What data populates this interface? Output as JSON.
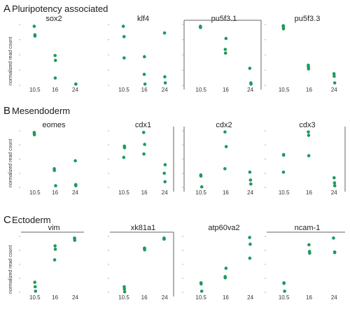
{
  "figure": {
    "sections": [
      {
        "letter": "A",
        "title": "Pluripotency associated"
      },
      {
        "letter": "B",
        "title": "Mesendoderm"
      },
      {
        "letter": "C",
        "title": "Ectoderm"
      }
    ],
    "ylabel": "normalized read count",
    "point_color": "#1e9a5c"
  },
  "chart_data": [
    {
      "type": "scatter",
      "title": "sox2",
      "categories": [
        "10.5",
        "16",
        "24"
      ],
      "ylim": [
        0,
        1
      ],
      "series": [
        {
          "points": [
            [
              0,
              0.97
            ],
            [
              0,
              0.83
            ],
            [
              0,
              0.81
            ],
            [
              1,
              0.49
            ],
            [
              1,
              0.41
            ],
            [
              1,
              0.12
            ],
            [
              2,
              0.02
            ],
            [
              2,
              0.02
            ]
          ]
        }
      ]
    },
    {
      "type": "scatter",
      "title": "klf4",
      "categories": [
        "10.5",
        "16",
        "24"
      ],
      "ylim": [
        0,
        1
      ],
      "series": [
        {
          "points": [
            [
              0,
              0.97
            ],
            [
              0,
              0.8
            ],
            [
              0,
              0.45
            ],
            [
              1,
              0.47
            ],
            [
              1,
              0.18
            ],
            [
              1,
              0.02
            ],
            [
              2,
              0.86
            ],
            [
              2,
              0.14
            ],
            [
              2,
              0.04
            ]
          ]
        }
      ]
    },
    {
      "type": "scatter",
      "title": "pu5f3.1",
      "categories": [
        "10.5",
        "16",
        "24"
      ],
      "ylim": [
        0,
        1
      ],
      "series": [
        {
          "points": [
            [
              0,
              0.97
            ],
            [
              0,
              0.96
            ],
            [
              0,
              0.95
            ],
            [
              1,
              0.77
            ],
            [
              1,
              0.59
            ],
            [
              1,
              0.53
            ],
            [
              2,
              0.28
            ],
            [
              2,
              0.04
            ],
            [
              2,
              0.02
            ]
          ]
        }
      ]
    },
    {
      "type": "scatter",
      "title": "pu5f3.3",
      "categories": [
        "10.5",
        "16",
        "24"
      ],
      "ylim": [
        0,
        1
      ],
      "series": [
        {
          "points": [
            [
              0,
              0.98
            ],
            [
              0,
              0.96
            ],
            [
              0,
              0.93
            ],
            [
              1,
              0.33
            ],
            [
              1,
              0.3
            ],
            [
              1,
              0.27
            ],
            [
              2,
              0.19
            ],
            [
              2,
              0.15
            ],
            [
              2,
              0.04
            ]
          ]
        }
      ]
    },
    {
      "type": "scatter",
      "title": "eomes",
      "categories": [
        "10.5",
        "16",
        "24"
      ],
      "ylim": [
        0,
        1
      ],
      "series": [
        {
          "points": [
            [
              0,
              0.97
            ],
            [
              0,
              0.95
            ],
            [
              0,
              0.93
            ],
            [
              1,
              0.33
            ],
            [
              1,
              0.3
            ],
            [
              1,
              0.03
            ],
            [
              2,
              0.47
            ],
            [
              2,
              0.05
            ],
            [
              2,
              0.03
            ]
          ]
        }
      ]
    },
    {
      "type": "scatter",
      "title": "cdx1",
      "categories": [
        "10.5",
        "16",
        "24"
      ],
      "ylim": [
        0,
        1
      ],
      "series": [
        {
          "points": [
            [
              0,
              0.73
            ],
            [
              0,
              0.7
            ],
            [
              0,
              0.53
            ],
            [
              1,
              0.97
            ],
            [
              1,
              0.76
            ],
            [
              1,
              0.59
            ],
            [
              2,
              0.4
            ],
            [
              2,
              0.25
            ],
            [
              2,
              0.1
            ]
          ]
        }
      ]
    },
    {
      "type": "scatter",
      "title": "cdx2",
      "categories": [
        "10.5",
        "16",
        "24"
      ],
      "ylim": [
        0,
        1
      ],
      "series": [
        {
          "points": [
            [
              0,
              0.22
            ],
            [
              0,
              0.2
            ],
            [
              0,
              0.01
            ],
            [
              1,
              0.98
            ],
            [
              1,
              0.72
            ],
            [
              1,
              0.33
            ],
            [
              2,
              0.27
            ],
            [
              2,
              0.13
            ],
            [
              2,
              0.06
            ]
          ]
        }
      ]
    },
    {
      "type": "scatter",
      "title": "cdx3",
      "categories": [
        "10.5",
        "16",
        "24"
      ],
      "ylim": [
        0,
        1
      ],
      "series": [
        {
          "points": [
            [
              0,
              0.58
            ],
            [
              0,
              0.57
            ],
            [
              0,
              0.27
            ],
            [
              1,
              0.98
            ],
            [
              1,
              0.92
            ],
            [
              1,
              0.56
            ],
            [
              2,
              0.17
            ],
            [
              2,
              0.08
            ],
            [
              2,
              0.03
            ]
          ]
        }
      ]
    },
    {
      "type": "scatter",
      "title": "vim",
      "categories": [
        "10.5",
        "16",
        "24"
      ],
      "ylim": [
        0,
        1
      ],
      "series": [
        {
          "points": [
            [
              0,
              0.18
            ],
            [
              0,
              0.1
            ],
            [
              0,
              0.02
            ],
            [
              1,
              0.83
            ],
            [
              1,
              0.77
            ],
            [
              1,
              0.58
            ],
            [
              2,
              0.97
            ],
            [
              2,
              0.96
            ],
            [
              2,
              0.93
            ]
          ]
        }
      ]
    },
    {
      "type": "scatter",
      "title": "xk81a1",
      "categories": [
        "10.5",
        "16",
        "24"
      ],
      "ylim": [
        0,
        1
      ],
      "series": [
        {
          "points": [
            [
              0,
              0.1
            ],
            [
              0,
              0.06
            ],
            [
              0,
              0.01
            ],
            [
              1,
              0.79
            ],
            [
              1,
              0.78
            ],
            [
              1,
              0.76
            ],
            [
              2,
              0.97
            ],
            [
              2,
              0.96
            ],
            [
              2,
              0.95
            ]
          ]
        }
      ]
    },
    {
      "type": "scatter",
      "title": "atp60va2",
      "categories": [
        "10.5",
        "16",
        "24"
      ],
      "ylim": [
        0,
        1
      ],
      "series": [
        {
          "points": [
            [
              0,
              0.17
            ],
            [
              0,
              0.15
            ],
            [
              0,
              0.02
            ],
            [
              1,
              0.43
            ],
            [
              1,
              0.28
            ],
            [
              1,
              0.26
            ],
            [
              2,
              0.98
            ],
            [
              2,
              0.86
            ],
            [
              2,
              0.61
            ]
          ]
        }
      ]
    },
    {
      "type": "scatter",
      "title": "ncam-1",
      "categories": [
        "10.5",
        "16",
        "24"
      ],
      "ylim": [
        0,
        1
      ],
      "series": [
        {
          "points": [
            [
              0,
              0.17
            ],
            [
              0,
              0.16
            ],
            [
              0,
              0.02
            ],
            [
              1,
              0.85
            ],
            [
              1,
              0.73
            ],
            [
              1,
              0.7
            ],
            [
              2,
              0.97
            ],
            [
              2,
              0.72
            ],
            [
              2,
              0.71
            ]
          ]
        }
      ]
    }
  ]
}
